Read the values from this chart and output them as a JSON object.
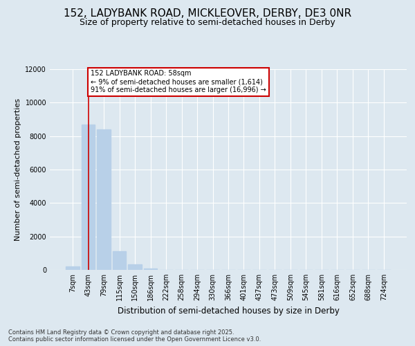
{
  "title_line1": "152, LADYBANK ROAD, MICKLEOVER, DERBY, DE3 0NR",
  "title_line2": "Size of property relative to semi-detached houses in Derby",
  "xlabel": "Distribution of semi-detached houses by size in Derby",
  "ylabel": "Number of semi-detached properties",
  "categories": [
    "7sqm",
    "43sqm",
    "79sqm",
    "115sqm",
    "150sqm",
    "186sqm",
    "222sqm",
    "258sqm",
    "294sqm",
    "330sqm",
    "366sqm",
    "401sqm",
    "437sqm",
    "473sqm",
    "509sqm",
    "545sqm",
    "581sqm",
    "616sqm",
    "652sqm",
    "688sqm",
    "724sqm"
  ],
  "values": [
    200,
    8700,
    8400,
    1100,
    350,
    100,
    0,
    0,
    0,
    0,
    0,
    0,
    0,
    0,
    0,
    0,
    0,
    0,
    0,
    0,
    0
  ],
  "bar_color": "#b8d0e8",
  "vline_x": 1.0,
  "vline_color": "#cc0000",
  "annotation_text": "152 LADYBANK ROAD: 58sqm\n← 9% of semi-detached houses are smaller (1,614)\n91% of semi-detached houses are larger (16,996) →",
  "annotation_box_color": "#cc0000",
  "ylim": [
    0,
    12000
  ],
  "yticks": [
    0,
    2000,
    4000,
    6000,
    8000,
    10000,
    12000
  ],
  "background_color": "#dde8f0",
  "plot_bg_color": "#dde8f0",
  "footer_text": "Contains HM Land Registry data © Crown copyright and database right 2025.\nContains public sector information licensed under the Open Government Licence v3.0.",
  "grid_color": "#ffffff",
  "title_fontsize": 11,
  "subtitle_fontsize": 9,
  "tick_fontsize": 7,
  "ylabel_fontsize": 8,
  "xlabel_fontsize": 8.5
}
